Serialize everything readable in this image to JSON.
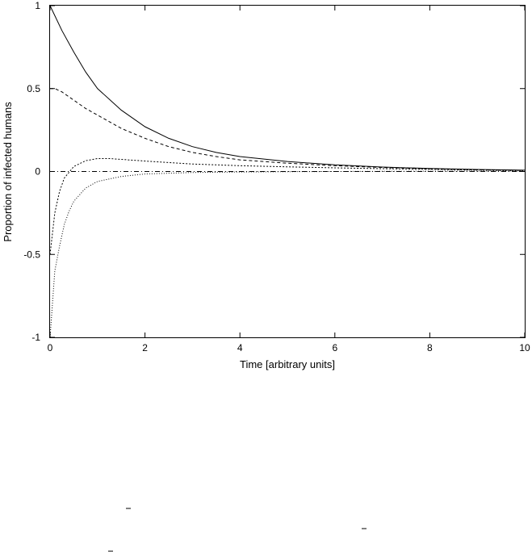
{
  "chart_data": {
    "type": "line",
    "xlabel": "Time [arbitrary units]",
    "ylabel": "Proportion of infected humans",
    "xlim": [
      0,
      10
    ],
    "ylim": [
      -1,
      1
    ],
    "x_ticks": [
      "0",
      "2",
      "4",
      "6",
      "8",
      "10"
    ],
    "y_ticks": [
      "1",
      "0.5",
      "0",
      "-0.5",
      "-1"
    ],
    "grid": false,
    "legend": "none",
    "series": [
      {
        "style": "solid",
        "x": [
          0,
          0.25,
          0.5,
          0.75,
          1,
          1.5,
          2,
          2.5,
          3,
          3.5,
          4,
          5,
          6,
          7,
          8,
          9,
          10
        ],
        "values": [
          1.0,
          0.85,
          0.72,
          0.6,
          0.5,
          0.37,
          0.27,
          0.2,
          0.15,
          0.115,
          0.09,
          0.06,
          0.04,
          0.027,
          0.018,
          0.012,
          0.008
        ]
      },
      {
        "style": "dashed",
        "x": [
          0,
          0.1,
          0.25,
          0.5,
          0.75,
          1,
          1.5,
          2,
          2.5,
          3,
          3.5,
          4,
          5,
          6,
          7,
          8,
          9,
          10
        ],
        "values": [
          0.5,
          0.5,
          0.48,
          0.43,
          0.38,
          0.34,
          0.26,
          0.2,
          0.15,
          0.115,
          0.09,
          0.07,
          0.05,
          0.035,
          0.024,
          0.016,
          0.01,
          0.007
        ]
      },
      {
        "style": "dotted",
        "x": [
          0,
          0.1,
          0.2,
          0.3,
          0.5,
          0.75,
          1,
          1.25,
          1.5,
          2,
          3,
          4,
          5,
          6,
          7,
          8,
          9,
          10
        ],
        "values": [
          -0.5,
          -0.25,
          -0.12,
          -0.04,
          0.03,
          0.065,
          0.078,
          0.078,
          0.073,
          0.063,
          0.045,
          0.035,
          0.028,
          0.022,
          0.017,
          0.013,
          0.009,
          0.006
        ]
      },
      {
        "style": "fine-dotted",
        "x": [
          0,
          0.05,
          0.1,
          0.2,
          0.3,
          0.4,
          0.5,
          0.75,
          1,
          1.5,
          2,
          3,
          4,
          5,
          6,
          8,
          10
        ],
        "values": [
          -1.0,
          -0.8,
          -0.6,
          -0.45,
          -0.32,
          -0.24,
          -0.18,
          -0.1,
          -0.06,
          -0.03,
          -0.015,
          -0.006,
          -0.003,
          -0.001,
          0.0,
          0.002,
          0.003
        ]
      },
      {
        "style": "dash-dot",
        "x": [
          0,
          10
        ],
        "values": [
          0,
          0
        ]
      }
    ]
  }
}
